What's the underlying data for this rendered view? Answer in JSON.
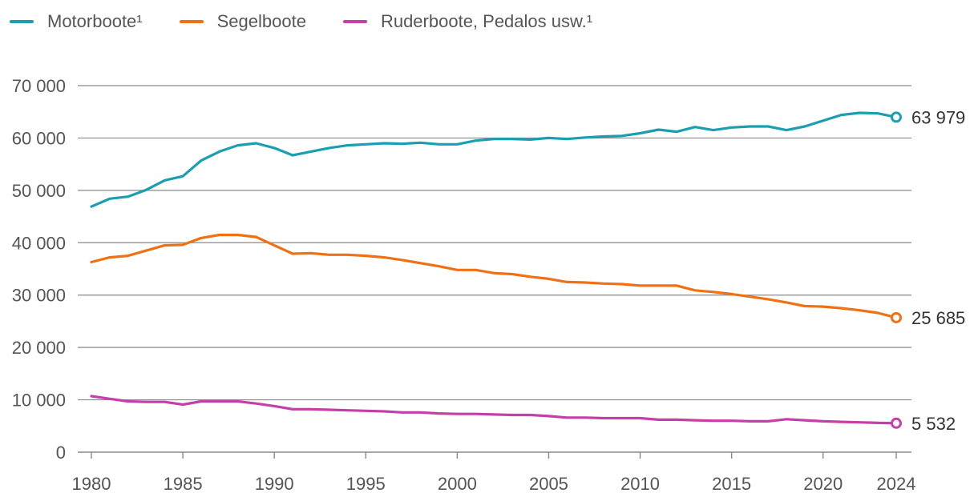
{
  "chart_data": {
    "type": "line",
    "title": "",
    "xlabel": "",
    "ylabel": "",
    "ylim": [
      0,
      70000
    ],
    "xlim": [
      1980,
      2024
    ],
    "grid": true,
    "legend_position": "top-left",
    "x_ticks": [
      1980,
      1985,
      1990,
      1995,
      2000,
      2005,
      2010,
      2015,
      2020,
      2024
    ],
    "x_tick_labels": [
      "1980",
      "1985",
      "1990",
      "1995",
      "2000",
      "2005",
      "2010",
      "2015",
      "2020",
      "2024"
    ],
    "y_ticks": [
      0,
      10000,
      20000,
      30000,
      40000,
      50000,
      60000,
      70000
    ],
    "y_tick_labels": [
      "0",
      "10 000",
      "20 000",
      "30 000",
      "40 000",
      "50 000",
      "60 000",
      "70 000"
    ],
    "x": [
      1980,
      1981,
      1982,
      1983,
      1984,
      1985,
      1986,
      1987,
      1988,
      1989,
      1990,
      1991,
      1992,
      1993,
      1994,
      1995,
      1996,
      1997,
      1998,
      1999,
      2000,
      2001,
      2002,
      2003,
      2004,
      2005,
      2006,
      2007,
      2008,
      2009,
      2010,
      2011,
      2012,
      2013,
      2014,
      2015,
      2016,
      2017,
      2018,
      2019,
      2020,
      2021,
      2022,
      2023,
      2024
    ],
    "series": [
      {
        "name": "Motorboote¹",
        "color": "#1a9fb0",
        "end_label": "63 979",
        "values": [
          46900,
          48400,
          48800,
          50100,
          51900,
          52700,
          55700,
          57400,
          58600,
          59000,
          58100,
          56700,
          57400,
          58100,
          58600,
          58800,
          59000,
          58900,
          59100,
          58800,
          58800,
          59500,
          59800,
          59800,
          59700,
          60000,
          59800,
          60100,
          60300,
          60400,
          60900,
          61600,
          61200,
          62100,
          61500,
          62000,
          62200,
          62200,
          61500,
          62200,
          63300,
          64400,
          64800,
          64700,
          63979
        ]
      },
      {
        "name": "Segelboote",
        "color": "#f07014",
        "end_label": "25 685",
        "values": [
          36300,
          37200,
          37500,
          38500,
          39500,
          39600,
          40900,
          41500,
          41500,
          41100,
          39500,
          37900,
          38000,
          37700,
          37700,
          37500,
          37200,
          36700,
          36100,
          35500,
          34800,
          34800,
          34200,
          34000,
          33500,
          33100,
          32500,
          32400,
          32200,
          32100,
          31800,
          31800,
          31800,
          30900,
          30600,
          30200,
          29700,
          29200,
          28600,
          27900,
          27800,
          27500,
          27100,
          26600,
          25685
        ]
      },
      {
        "name": "Ruderboote, Pedalos usw.¹",
        "color": "#c43fa8",
        "end_label": "5 532",
        "values": [
          10700,
          10200,
          9700,
          9600,
          9600,
          9100,
          9700,
          9700,
          9700,
          9300,
          8800,
          8200,
          8200,
          8100,
          8000,
          7900,
          7800,
          7600,
          7600,
          7400,
          7300,
          7300,
          7200,
          7100,
          7100,
          6900,
          6600,
          6600,
          6500,
          6500,
          6500,
          6200,
          6200,
          6100,
          6000,
          6000,
          5900,
          5900,
          6300,
          6100,
          5900,
          5800,
          5700,
          5600,
          5532
        ]
      }
    ]
  }
}
